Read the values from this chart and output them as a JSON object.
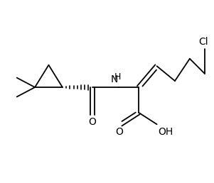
{
  "bg_color": "#ffffff",
  "line_color": "#000000",
  "bond_width": 1.3,
  "text_color": "#000000",
  "fig_width": 3.01,
  "fig_height": 2.58,
  "dpi": 100,
  "xlim": [
    0,
    10
  ],
  "ylim": [
    0,
    8.6
  ]
}
